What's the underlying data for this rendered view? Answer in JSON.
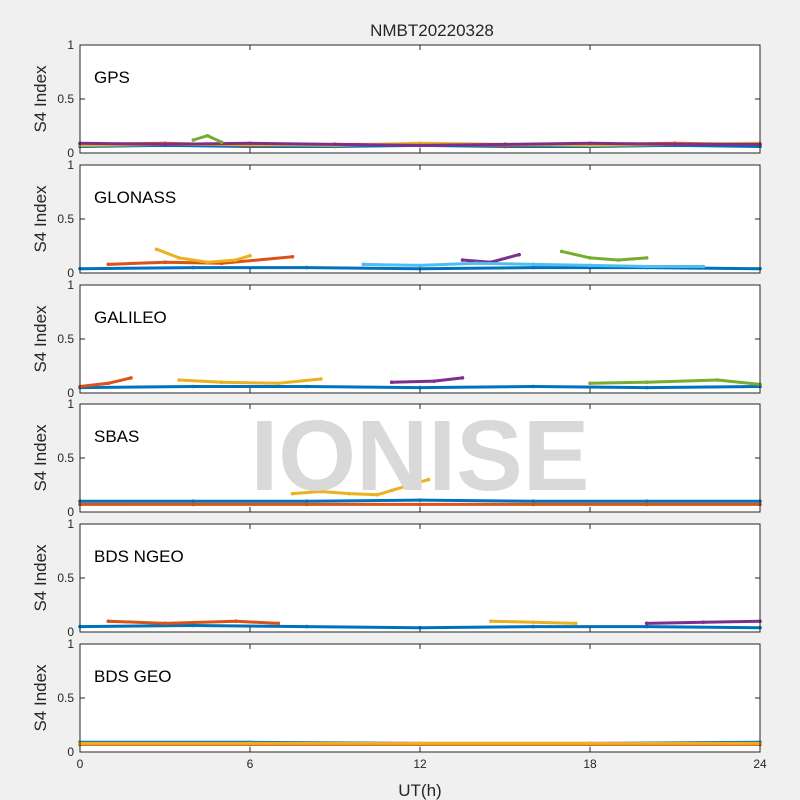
{
  "chart_data": {
    "type": "scatter",
    "title": "NMBT20220328",
    "xlabel": "UT(h)",
    "ylabel": "S4 Index",
    "xlim": [
      0,
      24
    ],
    "ylim": [
      0,
      1
    ],
    "x_ticks": [
      "0",
      "6",
      "12",
      "18",
      "24"
    ],
    "y_ticks": [
      "0",
      "0.5",
      "1"
    ],
    "watermark": "IONISE",
    "series_colors": [
      "#0072bd",
      "#d95319",
      "#edb120",
      "#7e2f8e",
      "#77ac30",
      "#4dbeee",
      "#a2142f"
    ],
    "panels": [
      {
        "label": "GPS",
        "series": [
          {
            "x": [
              0,
              3,
              6,
              9,
              12,
              15,
              18,
              21,
              24
            ],
            "y": [
              0.06,
              0.07,
              0.06,
              0.06,
              0.07,
              0.06,
              0.06,
              0.07,
              0.06
            ]
          },
          {
            "x": [
              0,
              3,
              6,
              9,
              12,
              15,
              18,
              21,
              24
            ],
            "y": [
              0.08,
              0.09,
              0.07,
              0.08,
              0.08,
              0.07,
              0.08,
              0.09,
              0.08
            ]
          },
          {
            "x": [
              0,
              3,
              6,
              9,
              12,
              15,
              18,
              21,
              24
            ],
            "y": [
              0.07,
              0.08,
              0.08,
              0.07,
              0.09,
              0.08,
              0.07,
              0.08,
              0.09
            ]
          },
          {
            "x": [
              0,
              3,
              6,
              9,
              12,
              15,
              18,
              21,
              24
            ],
            "y": [
              0.09,
              0.08,
              0.09,
              0.08,
              0.07,
              0.08,
              0.09,
              0.08,
              0.08
            ]
          },
          {
            "x": [
              4,
              4.5,
              5
            ],
            "y": [
              0.12,
              0.16,
              0.1
            ]
          }
        ]
      },
      {
        "label": "GLONASS",
        "series": [
          {
            "x": [
              0,
              4,
              8,
              12,
              16,
              20,
              24
            ],
            "y": [
              0.04,
              0.05,
              0.05,
              0.04,
              0.05,
              0.05,
              0.04
            ]
          },
          {
            "x": [
              1,
              3,
              5,
              7.5
            ],
            "y": [
              0.08,
              0.1,
              0.09,
              0.15
            ]
          },
          {
            "x": [
              2.7,
              3.5,
              4.5,
              5.5,
              6
            ],
            "y": [
              0.22,
              0.14,
              0.1,
              0.12,
              0.16
            ]
          },
          {
            "x": [
              13.5,
              14.5,
              15.5
            ],
            "y": [
              0.12,
              0.1,
              0.17
            ]
          },
          {
            "x": [
              17,
              18,
              19,
              20
            ],
            "y": [
              0.2,
              0.14,
              0.12,
              0.14
            ]
          },
          {
            "x": [
              10,
              12,
              14,
              16,
              18,
              20,
              22
            ],
            "y": [
              0.08,
              0.07,
              0.09,
              0.08,
              0.07,
              0.06,
              0.06
            ]
          }
        ]
      },
      {
        "label": "GALILEO",
        "series": [
          {
            "x": [
              0,
              4,
              8,
              12,
              16,
              20,
              24
            ],
            "y": [
              0.05,
              0.06,
              0.06,
              0.05,
              0.06,
              0.05,
              0.06
            ]
          },
          {
            "x": [
              0,
              1,
              1.8
            ],
            "y": [
              0.06,
              0.09,
              0.14
            ]
          },
          {
            "x": [
              3.5,
              5,
              7,
              8.5
            ],
            "y": [
              0.12,
              0.1,
              0.09,
              0.13
            ]
          },
          {
            "x": [
              11,
              12.5,
              13.5
            ],
            "y": [
              0.1,
              0.11,
              0.14
            ]
          },
          {
            "x": [
              18,
              20,
              22.5,
              24
            ],
            "y": [
              0.09,
              0.1,
              0.12,
              0.08
            ]
          }
        ]
      },
      {
        "label": "SBAS",
        "series": [
          {
            "x": [
              0,
              4,
              8,
              12,
              16,
              20,
              24
            ],
            "y": [
              0.1,
              0.1,
              0.1,
              0.11,
              0.1,
              0.1,
              0.1
            ]
          },
          {
            "x": [
              0,
              4,
              8,
              12,
              16,
              20,
              24
            ],
            "y": [
              0.07,
              0.07,
              0.07,
              0.07,
              0.07,
              0.07,
              0.07
            ]
          },
          {
            "x": [
              7.5,
              8.5,
              9.5,
              10.5,
              11,
              12.3
            ],
            "y": [
              0.17,
              0.19,
              0.17,
              0.16,
              0.2,
              0.3
            ]
          }
        ]
      },
      {
        "label": "BDS NGEO",
        "series": [
          {
            "x": [
              0,
              4,
              8,
              12,
              16,
              20,
              24
            ],
            "y": [
              0.05,
              0.06,
              0.05,
              0.04,
              0.05,
              0.05,
              0.04
            ]
          },
          {
            "x": [
              1,
              3,
              5.5,
              7
            ],
            "y": [
              0.1,
              0.08,
              0.1,
              0.08
            ]
          },
          {
            "x": [
              14.5,
              16,
              17.5
            ],
            "y": [
              0.1,
              0.09,
              0.08
            ]
          },
          {
            "x": [
              20,
              22,
              24
            ],
            "y": [
              0.08,
              0.09,
              0.1
            ]
          }
        ]
      },
      {
        "label": "BDS GEO",
        "series": [
          {
            "x": [
              0,
              6,
              12,
              18,
              24
            ],
            "y": [
              0.09,
              0.09,
              0.08,
              0.08,
              0.09
            ]
          },
          {
            "x": [
              0,
              6,
              12,
              18,
              24
            ],
            "y": [
              0.07,
              0.07,
              0.07,
              0.07,
              0.07
            ]
          },
          {
            "x": [
              0,
              6,
              12,
              18,
              24
            ],
            "y": [
              0.08,
              0.08,
              0.08,
              0.08,
              0.08
            ]
          }
        ]
      }
    ]
  }
}
